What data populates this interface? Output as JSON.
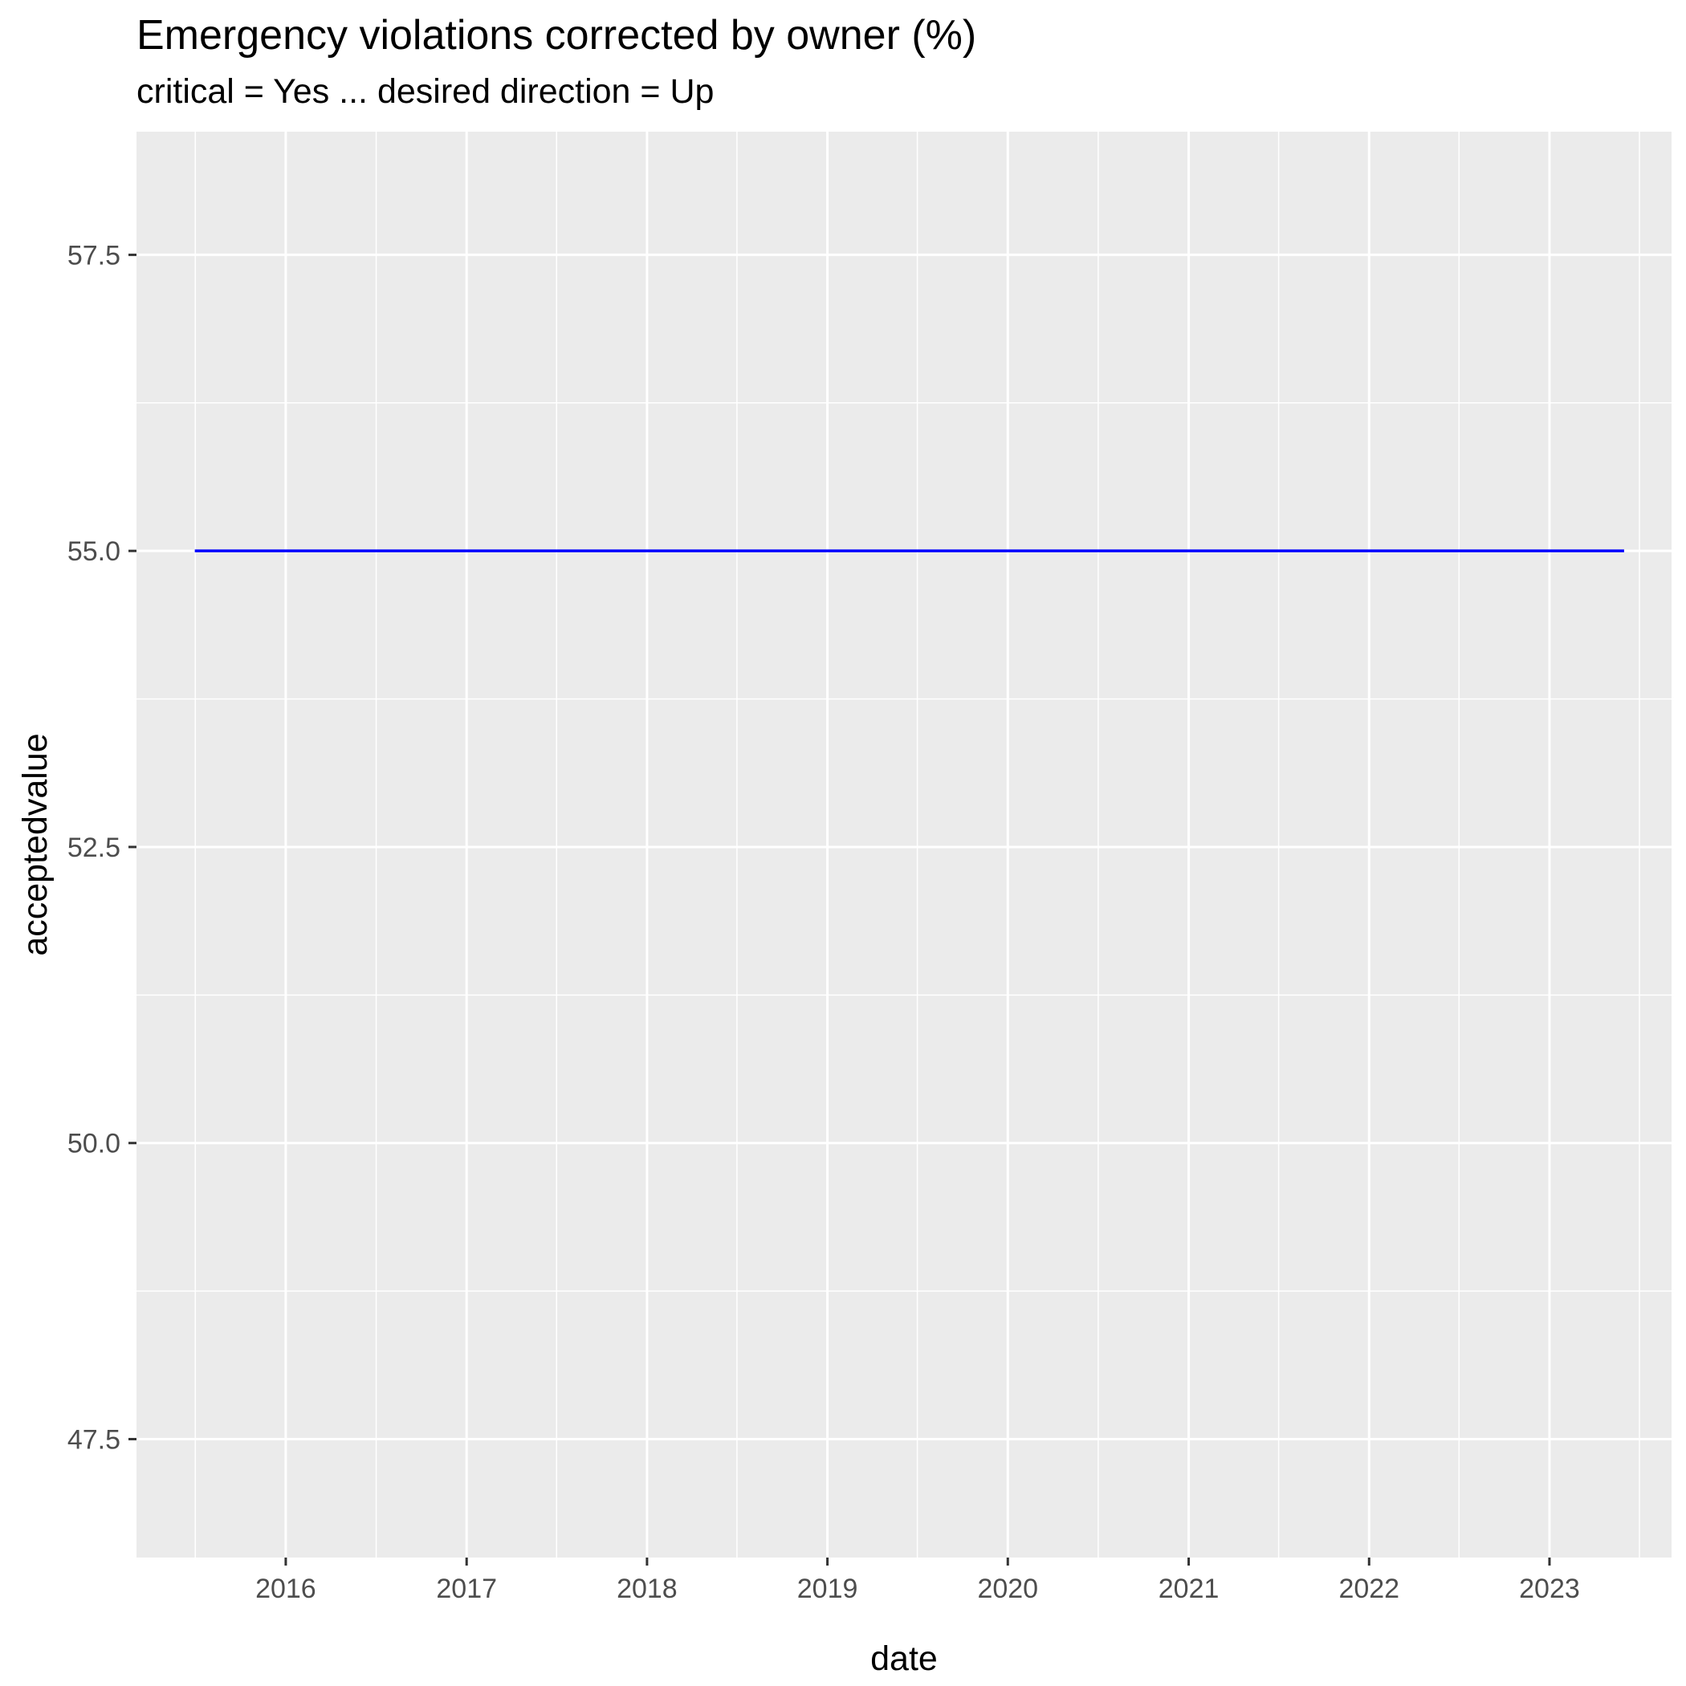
{
  "chart_data": {
    "type": "line",
    "title": "Emergency violations corrected by owner (%)",
    "subtitle": "critical = Yes ... desired direction = Up",
    "xlabel": "date",
    "ylabel": "acceptedvalue",
    "x_ticks": [
      "2016",
      "2017",
      "2018",
      "2019",
      "2020",
      "2021",
      "2022",
      "2023"
    ],
    "y_ticks": [
      "47.5",
      "50.0",
      "52.5",
      "55.0",
      "57.5"
    ],
    "xlim": [
      "2015-03-05",
      "2023-09-05"
    ],
    "ylim": [
      46.5,
      58.54
    ],
    "grid": true,
    "panel_background": "#ebebeb",
    "grid_color": "#ffffff",
    "series": [
      {
        "color": "#0000ff",
        "points": [
          {
            "x": "2015-07-01",
            "y": 55.0
          },
          {
            "x": "2023-06-01",
            "y": 55.0
          }
        ]
      }
    ]
  }
}
